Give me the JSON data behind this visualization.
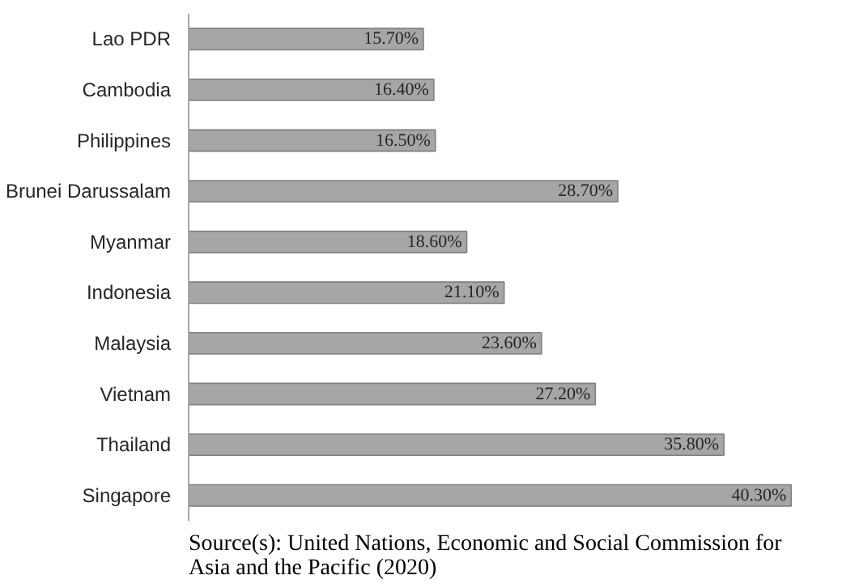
{
  "chart_data": {
    "type": "bar",
    "orientation": "horizontal",
    "categories": [
      "Lao PDR",
      "Cambodia",
      "Philippines",
      "Brunei Darussalam",
      "Myanmar",
      "Indonesia",
      "Malaysia",
      "Vietnam",
      "Thailand",
      "Singapore"
    ],
    "values": [
      15.7,
      16.4,
      16.5,
      28.7,
      18.6,
      21.1,
      23.6,
      27.2,
      35.8,
      40.3
    ],
    "value_labels": [
      "15.70%",
      "16.40%",
      "16.50%",
      "28.70%",
      "18.60%",
      "21.10%",
      "23.60%",
      "27.20%",
      "35.80%",
      "40.30%"
    ],
    "color": "#a6a6a6",
    "grid": false,
    "annotations": [
      "Source(s): United Nations, Economic and Social Commission for Asia and the Pacific (2020)"
    ]
  }
}
